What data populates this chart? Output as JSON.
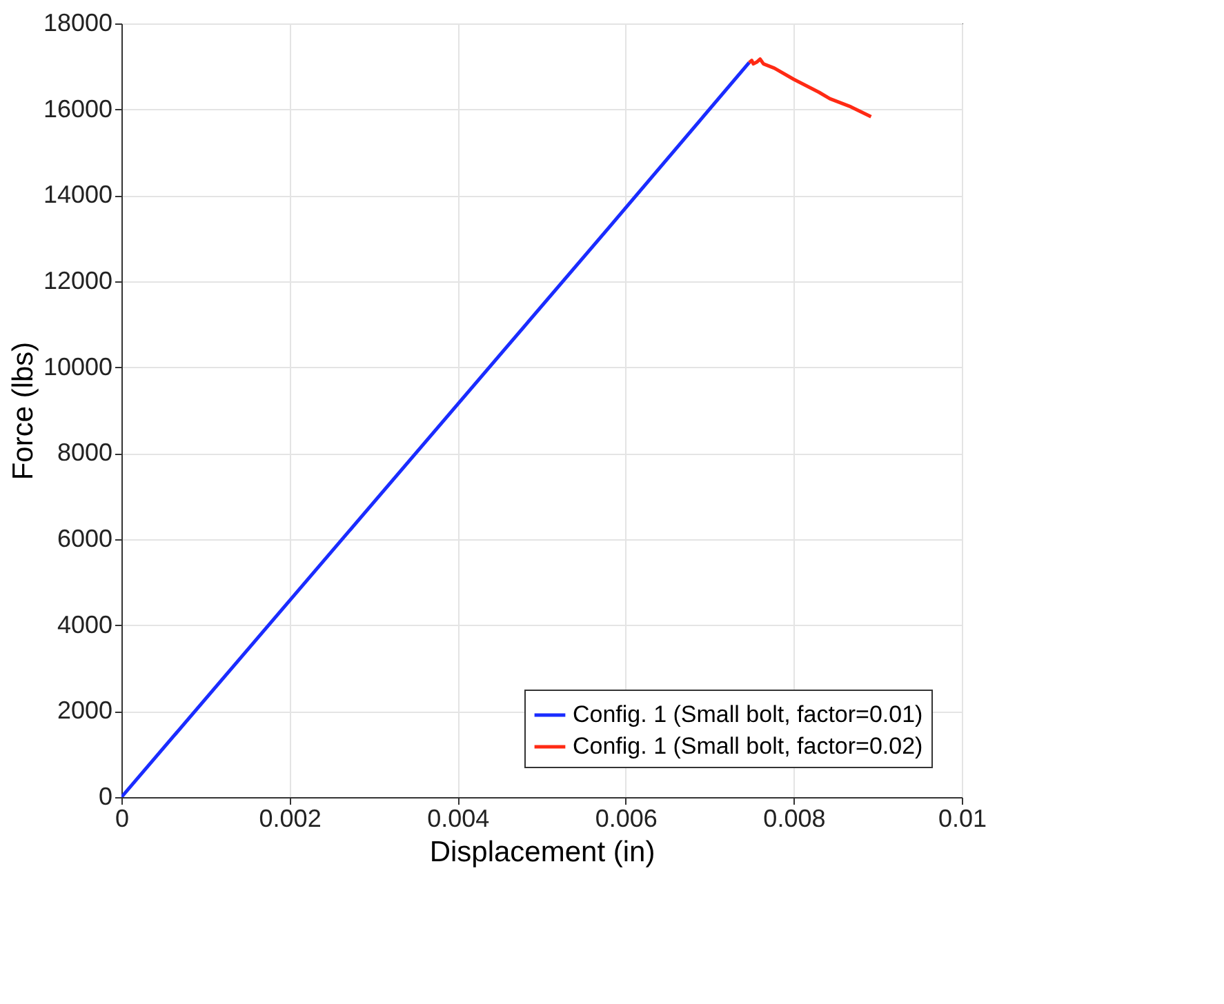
{
  "chart_data": {
    "type": "line",
    "xlabel": "Displacement (in)",
    "ylabel": "Force (lbs)",
    "xlim": [
      0,
      0.01
    ],
    "xticks": [
      0,
      0.002,
      0.004,
      0.006,
      0.008,
      0.01
    ],
    "ylim": [
      0,
      18000
    ],
    "yticks": [
      0,
      2000,
      4000,
      6000,
      8000,
      10000,
      12000,
      14000,
      16000,
      18000
    ],
    "grid": true,
    "legend": "bottom right",
    "series": [
      {
        "name": "Config. 1 (Small bolt, factor=0.01)",
        "color": "#1a2cff",
        "x": [
          0,
          0.0058,
          0.00747
        ],
        "values": [
          0,
          13250,
          17090
        ]
      },
      {
        "name": "Config. 1 (Small bolt, factor=0.02)",
        "color": "#ff2a14",
        "x": [
          0.00747,
          0.0075,
          0.00752,
          0.00756,
          0.0076,
          0.00764,
          0.00777,
          0.008,
          0.0083,
          0.00843,
          0.00868,
          0.00892
        ],
        "values": [
          17090,
          17140,
          17060,
          17100,
          17170,
          17060,
          16960,
          16700,
          16400,
          16250,
          16060,
          15830
        ]
      }
    ]
  }
}
